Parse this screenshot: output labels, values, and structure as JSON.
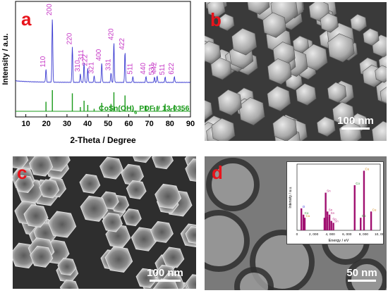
{
  "panels": {
    "a": {
      "letter": "a",
      "ylabel": "Intensity / a.u.",
      "xlabel": "2-Theta / Degree",
      "reference_label_prefix": "CoSn(OH)",
      "reference_label_sub": "6",
      "reference_label_suffix": " PDF # 13-0356",
      "xticks": [
        "10",
        "20",
        "30",
        "40",
        "50",
        "60",
        "70",
        "80",
        "90"
      ],
      "colors": {
        "experimental": "#3b3bd1",
        "reference": "#1a9a1a",
        "hkl": "#c73bc7",
        "letter": "#e8141c"
      }
    },
    "b": {
      "letter": "b",
      "scale_bar": "100 nm"
    },
    "c": {
      "letter": "c",
      "scale_bar": "100 nm"
    },
    "d": {
      "letter": "d",
      "scale_bar": "50 nm",
      "inset": {
        "ylabel": "Intensity / a.u.",
        "xlabel": "Energy / eV",
        "xticks": [
          "0",
          "2, 000",
          "4, 000",
          "6, 000",
          "8, 000",
          "10, 000"
        ],
        "element_labels": [
          "O",
          "Sn",
          "Sn",
          "Sn",
          "Sn",
          "Sn",
          "Sn",
          "Co",
          "Co",
          "Co",
          "Cu",
          "Cu"
        ]
      }
    }
  },
  "chart_data": {
    "type": "line",
    "xlabel": "2-Theta / Degree",
    "ylabel": "Intensity / a.u.",
    "xlim": [
      5,
      90
    ],
    "series": [
      {
        "peaks": [
          {
            "hkl": "110",
            "x": 19.8,
            "height": 0.2
          },
          {
            "hkl": "200",
            "x": 22.9,
            "height": 1.0
          },
          {
            "hkl": "220",
            "x": 32.6,
            "height": 0.55
          },
          {
            "hkl": "310",
            "x": 36.5,
            "height": 0.13
          },
          {
            "hkl": "311",
            "x": 38.3,
            "height": 0.3
          },
          {
            "hkl": "222",
            "x": 40.1,
            "height": 0.22
          },
          {
            "hkl": "321",
            "x": 43.2,
            "height": 0.1
          },
          {
            "hkl": "400",
            "x": 46.9,
            "height": 0.3
          },
          {
            "hkl": "331",
            "x": 51.4,
            "height": 0.15
          },
          {
            "hkl": "420",
            "x": 52.8,
            "height": 0.62
          },
          {
            "hkl": "422",
            "x": 58.2,
            "height": 0.47
          },
          {
            "hkl": "511",
            "x": 62.0,
            "height": 0.09
          },
          {
            "hkl": "440",
            "x": 68.4,
            "height": 0.09
          },
          {
            "hkl": "531",
            "x": 72.5,
            "height": 0.08
          },
          {
            "hkl": "442",
            "x": 73.8,
            "height": 0.1
          },
          {
            "hkl": "511",
            "x": 77.7,
            "height": 0.08
          },
          {
            "hkl": "622",
            "x": 82.2,
            "height": 0.09
          }
        ]
      },
      {
        "name": "CoSn(OH)6 PDF # 13-0356",
        "sticks": [
          {
            "x": 19.8,
            "height": 0.45
          },
          {
            "x": 22.9,
            "height": 1.0
          },
          {
            "x": 32.6,
            "height": 0.85
          },
          {
            "x": 36.5,
            "height": 0.2
          },
          {
            "x": 38.3,
            "height": 0.5
          },
          {
            "x": 40.1,
            "height": 0.3
          },
          {
            "x": 43.2,
            "height": 0.12
          },
          {
            "x": 46.9,
            "height": 0.4
          },
          {
            "x": 51.4,
            "height": 0.35
          },
          {
            "x": 52.8,
            "height": 0.9
          },
          {
            "x": 58.2,
            "height": 0.75
          },
          {
            "x": 62.0,
            "height": 0.12
          },
          {
            "x": 68.4,
            "height": 0.25
          },
          {
            "x": 72.5,
            "height": 0.2
          },
          {
            "x": 73.8,
            "height": 0.25
          },
          {
            "x": 77.7,
            "height": 0.35
          },
          {
            "x": 80.5,
            "height": 0.12
          },
          {
            "x": 82.2,
            "height": 0.3
          },
          {
            "x": 86.0,
            "height": 0.08
          }
        ]
      }
    ]
  },
  "eds_data": {
    "type": "bar",
    "xlabel": "Energy / eV",
    "ylabel": "Intensity / a.u.",
    "xlim": [
      0,
      10000
    ],
    "peaks": [
      {
        "label": "O",
        "x": 525,
        "height": 0.35
      },
      {
        "label": "Co",
        "x": 776,
        "height": 0.25
      },
      {
        "label": "Cu",
        "x": 930,
        "height": 0.2
      },
      {
        "label": "Sn",
        "x": 3444,
        "height": 0.6
      },
      {
        "label": "Sn",
        "x": 3662,
        "height": 0.3
      },
      {
        "label": "Sn",
        "x": 3904,
        "height": 0.25
      },
      {
        "label": "Sn",
        "x": 4131,
        "height": 0.15
      },
      {
        "label": "Sn",
        "x": 3300,
        "height": 0.2
      },
      {
        "label": "Sn",
        "x": 4375,
        "height": 0.12
      },
      {
        "label": "Co",
        "x": 6930,
        "height": 0.72
      },
      {
        "label": "Co",
        "x": 7649,
        "height": 0.2
      },
      {
        "label": "Cu",
        "x": 8048,
        "height": 0.95
      },
      {
        "label": "Cu",
        "x": 8905,
        "height": 0.3
      }
    ]
  }
}
